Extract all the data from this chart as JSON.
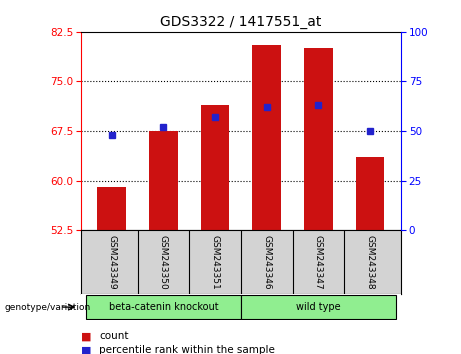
{
  "title": "GDS3322 / 1417551_at",
  "samples": [
    "GSM243349",
    "GSM243350",
    "GSM243351",
    "GSM243346",
    "GSM243347",
    "GSM243348"
  ],
  "bar_values": [
    59.0,
    67.5,
    71.5,
    80.5,
    80.0,
    63.5
  ],
  "percentile_values": [
    48,
    52,
    57,
    62,
    63,
    50
  ],
  "ylim_left": [
    52.5,
    82.5
  ],
  "ylim_right": [
    0,
    100
  ],
  "yticks_left": [
    52.5,
    60,
    67.5,
    75,
    82.5
  ],
  "yticks_right": [
    0,
    25,
    50,
    75,
    100
  ],
  "bar_color": "#cc1111",
  "dot_color": "#2222cc",
  "bg_plot": "#ffffff",
  "bg_sample": "#d3d3d3",
  "bg_group": "#90ee90",
  "group1_label": "beta-catenin knockout",
  "group2_label": "wild type",
  "legend_count": "count",
  "legend_pct": "percentile rank within the sample",
  "genotype_label": "genotype/variation",
  "title_fontsize": 10,
  "tick_fontsize": 7.5,
  "sample_label_fontsize": 6.5
}
